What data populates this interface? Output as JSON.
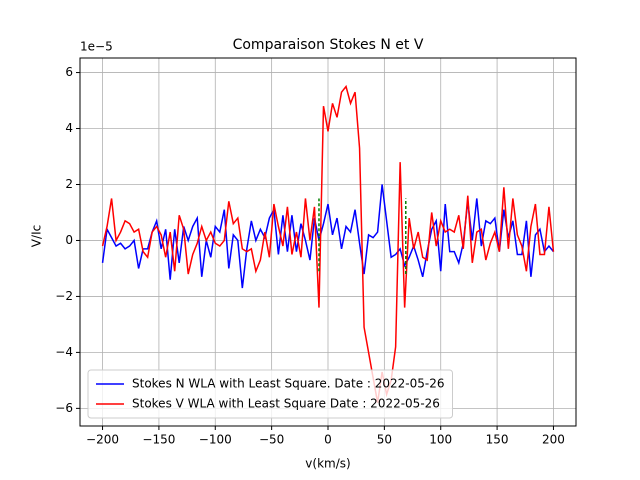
{
  "chart_data": {
    "type": "line",
    "title": "Comparaison Stokes N et V",
    "xlabel": "v(km/s)",
    "ylabel": "V/Ic",
    "y_offset_label": "1e−5",
    "x": [
      -200,
      -196,
      -192,
      -188,
      -184,
      -180,
      -176,
      -172,
      -168,
      -164,
      -160,
      -156,
      -152,
      -148,
      -144,
      -140,
      -136,
      -132,
      -128,
      -124,
      -120,
      -116,
      -112,
      -108,
      -104,
      -100,
      -96,
      -92,
      -88,
      -84,
      -80,
      -76,
      -72,
      -68,
      -64,
      -60,
      -56,
      -52,
      -48,
      -44,
      -40,
      -36,
      -32,
      -28,
      -24,
      -20,
      -16,
      -12,
      -8,
      -4,
      0,
      4,
      8,
      12,
      16,
      20,
      24,
      28,
      32,
      36,
      40,
      44,
      48,
      52,
      56,
      60,
      64,
      68,
      72,
      76,
      80,
      84,
      88,
      92,
      96,
      100,
      104,
      108,
      112,
      116,
      120,
      124,
      128,
      132,
      136,
      140,
      144,
      148,
      152,
      156,
      160,
      164,
      168,
      172,
      176,
      180,
      184,
      188,
      192,
      196,
      200
    ],
    "series": [
      {
        "name": "Stokes N WLA with Least Square. Date : 2022-05-26",
        "color": "#0000ff",
        "values": [
          -0.8,
          0.4,
          0.1,
          -0.2,
          -0.1,
          -0.3,
          -0.2,
          0.0,
          -1.0,
          -0.3,
          -0.3,
          0.3,
          0.7,
          -0.3,
          0.4,
          -1.4,
          0.4,
          -0.8,
          0.5,
          0.0,
          0.5,
          0.8,
          -1.3,
          0.0,
          -0.6,
          0.5,
          0.3,
          1.1,
          -1.0,
          0.2,
          0.0,
          -1.7,
          -0.3,
          0.7,
          0.0,
          0.4,
          0.1,
          0.8,
          1.1,
          -0.5,
          0.9,
          -0.4,
          0.9,
          -0.4,
          0.6,
          0.0,
          -0.7,
          0.8,
          0.0,
          0.6,
          1.3,
          0.2,
          0.8,
          -0.3,
          0.5,
          0.3,
          1.1,
          -0.1,
          -1.2,
          0.2,
          0.1,
          0.3,
          2.0,
          0.7,
          -0.6,
          -0.5,
          -0.3,
          -0.9,
          -0.6,
          -0.2,
          -0.7,
          -1.3,
          -0.4,
          0.4,
          0.7,
          -1.1,
          1.3,
          -0.4,
          -0.4,
          -0.8,
          -0.1,
          1.4,
          0.0,
          1.5,
          -0.2,
          0.7,
          0.6,
          0.8,
          -0.4,
          1.1,
          0.1,
          0.7,
          -0.5,
          -0.5,
          0.7,
          -1.3,
          0.2,
          0.4,
          -0.4,
          -0.2,
          -0.4
        ]
      },
      {
        "name": "Stokes V WLA with Least Square Date : 2022-05-26",
        "color": "#ff0000",
        "values": [
          -0.2,
          0.5,
          1.5,
          0.0,
          0.3,
          0.7,
          0.6,
          0.3,
          0.4,
          -0.4,
          -0.6,
          0.3,
          0.5,
          0.2,
          -0.6,
          0.3,
          -1.1,
          0.9,
          0.4,
          -1.2,
          -0.5,
          -0.1,
          0.5,
          0.0,
          0.3,
          -0.1,
          -0.2,
          0.0,
          1.4,
          0.6,
          0.8,
          -0.3,
          -0.4,
          -0.3,
          -1.1,
          -0.7,
          0.3,
          -0.6,
          1.3,
          0.5,
          -0.2,
          1.2,
          -0.5,
          0.3,
          -0.6,
          1.5,
          0.0,
          1.2,
          -2.4,
          4.8,
          3.9,
          4.9,
          4.4,
          5.3,
          5.5,
          4.9,
          5.3,
          3.3,
          -3.1,
          -4.0,
          -4.9,
          -5.8,
          -4.7,
          -5.5,
          -5.0,
          -3.8,
          2.8,
          -2.4,
          0.8,
          -0.3,
          0.3,
          -0.6,
          -0.7,
          1.0,
          -0.2,
          0.7,
          0.3,
          0.4,
          0.3,
          0.9,
          -0.3,
          1.6,
          -0.8,
          0.3,
          0.4,
          -0.7,
          -0.1,
          0.3,
          -0.4,
          1.9,
          -0.3,
          1.5,
          0.2,
          -0.2,
          -1.1,
          0.5,
          1.3,
          -0.5,
          -0.5,
          1.2,
          -0.4
        ]
      }
    ],
    "vlines": [
      {
        "x": -8,
        "ymin": -1.1,
        "ymax": 1.5,
        "color": "#008000"
      },
      {
        "x": 69,
        "ymin": -1.2,
        "ymax": 1.5,
        "color": "#008000"
      }
    ],
    "xlim": [
      -220,
      220
    ],
    "ylim": [
      -6.63,
      6.52
    ],
    "xticks": [
      {
        "value": -200,
        "label": "−200"
      },
      {
        "value": -150,
        "label": "−150"
      },
      {
        "value": -100,
        "label": "−100"
      },
      {
        "value": -50,
        "label": "−50"
      },
      0,
      50,
      100,
      150,
      200
    ],
    "yticks": [
      {
        "value": -6,
        "label": "−6"
      },
      {
        "value": -4,
        "label": "−4"
      },
      {
        "value": -2,
        "label": "−2"
      },
      0,
      2,
      4,
      6
    ],
    "grid": true,
    "legend": "lower left"
  }
}
